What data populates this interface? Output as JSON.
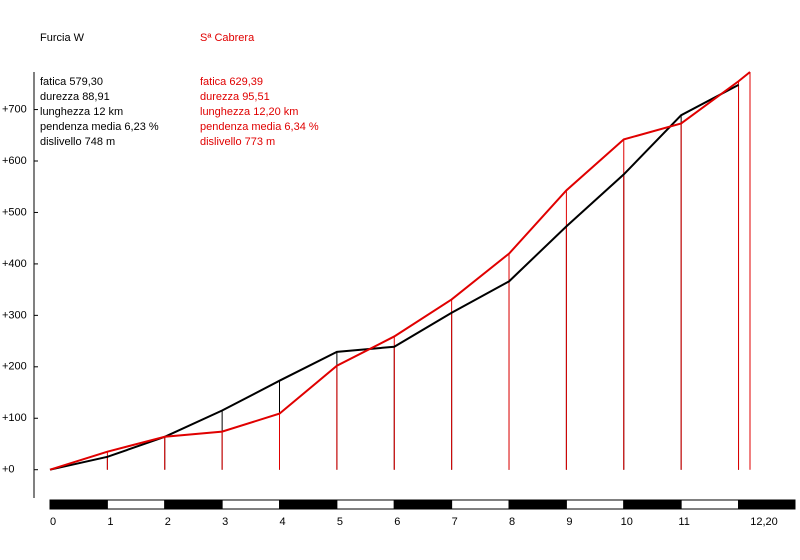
{
  "chart_data": {
    "type": "line",
    "xlim": [
      0,
      12.2
    ],
    "ylim": [
      -55,
      773
    ],
    "xticks": [
      0,
      1,
      2,
      3,
      4,
      5,
      6,
      7,
      8,
      9,
      10,
      11,
      {
        "value": 12.2,
        "label": "12,20"
      }
    ],
    "yticks": [
      {
        "value": 0,
        "label": "+0"
      },
      {
        "value": 100,
        "label": "+100"
      },
      {
        "value": 200,
        "label": "+200"
      },
      {
        "value": 300,
        "label": "+300"
      },
      {
        "value": 400,
        "label": "+400"
      },
      {
        "value": 500,
        "label": "+500"
      },
      {
        "value": 600,
        "label": "+600"
      },
      {
        "value": 700,
        "label": "+700"
      }
    ],
    "series": [
      {
        "name": "Furcia W",
        "color": "#000000",
        "stats": [
          "fatica 579,30",
          "durezza 88,91",
          "lunghezza 12 km",
          "pendenza media 6,23 %",
          "dislivello 748 m"
        ],
        "x": [
          0,
          1,
          2,
          3,
          4,
          5,
          6,
          7,
          8,
          9,
          10,
          11,
          12
        ],
        "values": [
          0,
          25,
          64,
          115,
          173,
          229,
          239,
          305,
          366,
          473,
          574,
          689,
          748
        ]
      },
      {
        "name": "Sª Cabrera",
        "color": "#e00000",
        "stats": [
          "fatica 629,39",
          "durezza 95,51",
          "lunghezza 12,20 km",
          "pendenza media 6,34 %",
          "dislivello 773 m"
        ],
        "x": [
          0,
          1,
          2,
          3,
          4,
          5,
          6,
          7,
          8,
          9,
          10,
          11,
          12,
          12.2
        ],
        "values": [
          0,
          35,
          64,
          74,
          109,
          202,
          259,
          331,
          420,
          543,
          642,
          673,
          755,
          773
        ]
      }
    ]
  }
}
